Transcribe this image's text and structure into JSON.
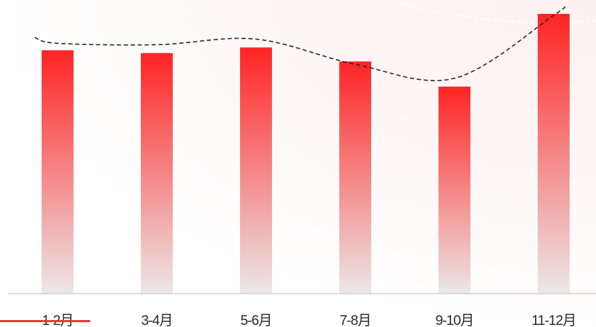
{
  "chart_data": {
    "type": "bar",
    "title": "",
    "xlabel": "",
    "ylabel": "",
    "categories": [
      "1-2月",
      "3-4月",
      "5-6月",
      "7-8月",
      "9-10月",
      "11-12月"
    ],
    "values": [
      87,
      86,
      88,
      83,
      74,
      100
    ],
    "ylim": [
      0,
      100
    ],
    "grid": false,
    "legend": "none",
    "trend_line": {
      "style": "dashed",
      "shape": "smooth curve through approximately the bar tops",
      "color": "#222222"
    },
    "colors": {
      "bar_top": "#ff2424",
      "bar_bottom": "#ece7e7",
      "baseline": "#cfcfcf",
      "background_tint": "#fdf0f0",
      "accent_stripe": "#e53935"
    }
  }
}
